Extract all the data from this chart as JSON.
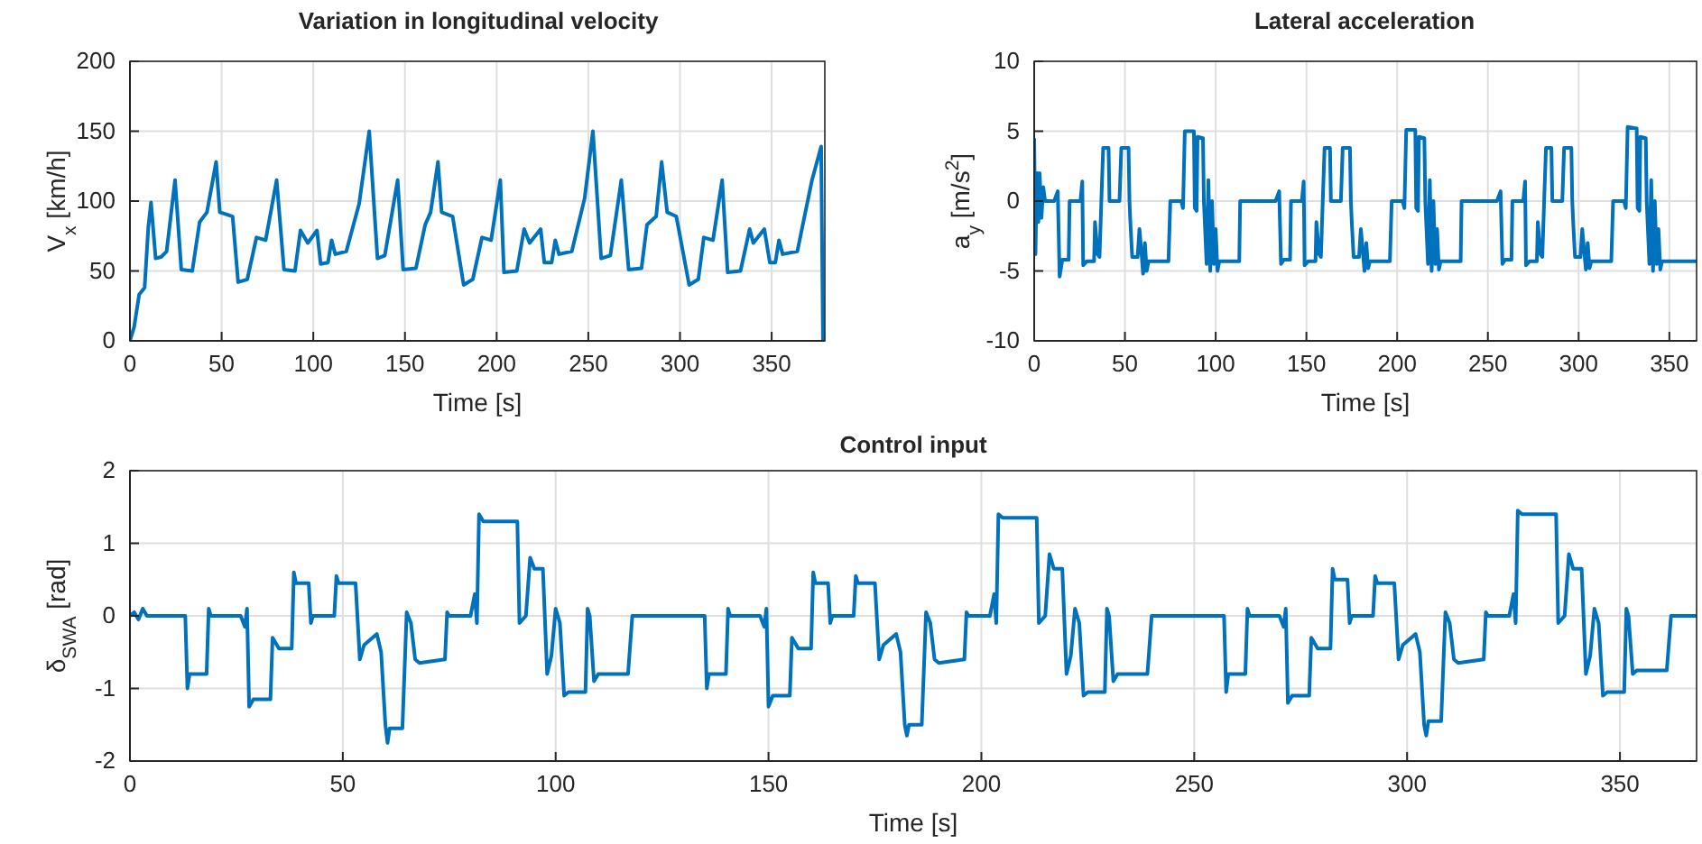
{
  "chart_data": [
    {
      "type": "line",
      "title": "Variation in longitudinal velocity",
      "xlabel": "Time [s]",
      "ylabel": "V$_{x}$ [km/h]",
      "xlim": [
        0,
        379
      ],
      "ylim": [
        0,
        200
      ],
      "xticks": [
        0,
        50,
        100,
        150,
        200,
        250,
        300,
        350
      ],
      "yticks": [
        0,
        50,
        100,
        150,
        200
      ],
      "grid": true,
      "series": [
        {
          "color": "#0072bd",
          "x": [
            0,
            2.3,
            5,
            8,
            10,
            11.5,
            14,
            17,
            20,
            24.6,
            28,
            34,
            38,
            42,
            47,
            49,
            56,
            59,
            64,
            69,
            74,
            80,
            84,
            90,
            93,
            97,
            102,
            104,
            108,
            110,
            112,
            118,
            125,
            130.5,
            135,
            139,
            146,
            149,
            156,
            161,
            164,
            168,
            170,
            176,
            182,
            187,
            192,
            197,
            202,
            204,
            211,
            215,
            218,
            224,
            226,
            230,
            232,
            234,
            241,
            248,
            252.5,
            257,
            262,
            268,
            272,
            279,
            282,
            287,
            290,
            293,
            298,
            305,
            310,
            313,
            318,
            323,
            326,
            333,
            338,
            340,
            346,
            349,
            352,
            354,
            356,
            364,
            372,
            377,
            378
          ],
          "values": [
            0,
            10,
            33,
            38,
            81,
            99,
            59,
            60,
            64,
            115,
            51,
            50,
            85,
            92,
            128,
            92,
            89,
            42,
            44,
            74,
            72,
            115,
            51,
            50,
            79,
            70,
            79,
            55,
            56,
            72,
            62,
            64,
            98,
            150,
            59,
            61,
            115,
            51,
            52,
            83,
            92,
            128,
            92,
            89,
            40,
            44,
            74,
            72,
            115,
            49,
            50,
            80,
            70,
            80,
            56,
            56,
            72,
            62,
            64,
            102,
            150,
            59,
            61,
            115,
            51,
            52,
            83,
            89,
            128,
            92,
            89,
            40,
            44,
            74,
            72,
            115,
            49,
            50,
            80,
            70,
            80,
            56,
            56,
            72,
            62,
            64,
            115,
            139,
            0
          ]
        }
      ]
    },
    {
      "type": "line",
      "title": "Lateral acceleration",
      "xlabel": "Time [s]",
      "ylabel": "a$_{y}$ [m/s$^{2}$]",
      "xlim": [
        0,
        365
      ],
      "ylim": [
        -10,
        10
      ],
      "xticks": [
        0,
        50,
        100,
        150,
        200,
        250,
        300,
        350
      ],
      "yticks": [
        -10,
        -5,
        0,
        5,
        10
      ],
      "grid": true,
      "series": [
        {
          "color": "#0072bd",
          "x": [
            0,
            0.7,
            1.5,
            2.3,
            3,
            4,
            5,
            6,
            11,
            13,
            14,
            15.5,
            19,
            19.5,
            25.5,
            26.5,
            27,
            29,
            33,
            33.5,
            35,
            36,
            37,
            38,
            41,
            41.5,
            47,
            48,
            52,
            52.5,
            53,
            54,
            57,
            58,
            59,
            60,
            61,
            62,
            63,
            74,
            75,
            81,
            82,
            83,
            88,
            88.5,
            89.5,
            90,
            93,
            93.5,
            95,
            96,
            97,
            98,
            99,
            100,
            101,
            102,
            113,
            113.5,
            133,
            135,
            136,
            137.5,
            141,
            141.5,
            147.5,
            148.5,
            149,
            151,
            155,
            155.5,
            157,
            158,
            159,
            160,
            163,
            163.5,
            169,
            170,
            174,
            174.5,
            175,
            176,
            179,
            180,
            181,
            182,
            183,
            184,
            185,
            196,
            197,
            203,
            204,
            205,
            210,
            210.5,
            211.5,
            212,
            215,
            215.5,
            217,
            218,
            219,
            220,
            221,
            222,
            223,
            224,
            235,
            235.5,
            255,
            257,
            258,
            259.5,
            263,
            263.5,
            269.5,
            270.5,
            271,
            273,
            277,
            277.5,
            279,
            280,
            281,
            282,
            285,
            285.5,
            291,
            292,
            296,
            296.5,
            297,
            298,
            301,
            302,
            303,
            304,
            305,
            306,
            307,
            318,
            319,
            325,
            326,
            327,
            332,
            332.5,
            333.5,
            334,
            337,
            337.5,
            339,
            340,
            341,
            342,
            343,
            344,
            345,
            346,
            365
          ],
          "values": [
            4.5,
            -3.8,
            2,
            -1.5,
            2,
            -1.2,
            1,
            0,
            0,
            0.7,
            -5.4,
            -4.2,
            -4.2,
            0,
            0,
            1.4,
            -4.6,
            -4.3,
            -4.3,
            -1.5,
            -3.8,
            -4,
            0,
            3.8,
            3.8,
            0,
            0,
            3.8,
            3.8,
            0,
            -1.5,
            -4,
            -4,
            -2,
            -3.5,
            -5.2,
            -3,
            -5,
            -4.3,
            -4.3,
            0,
            0,
            -0.5,
            5,
            5,
            -0.5,
            -0.7,
            4.6,
            4.5,
            0,
            -4.5,
            1.5,
            -5,
            0,
            -4.5,
            -2,
            -5,
            -4.3,
            -4.3,
            0,
            0,
            0.7,
            -4.5,
            -4.2,
            -4.2,
            0,
            0,
            1.4,
            -4.6,
            -4.3,
            -4.3,
            -1.5,
            -3.8,
            -4,
            0,
            3.8,
            3.8,
            0,
            0,
            3.8,
            3.8,
            0,
            -1.5,
            -4,
            -4,
            -2,
            -3.5,
            -5,
            -3,
            -4.8,
            -4.3,
            -4.3,
            0,
            0,
            -0.5,
            5.1,
            5.1,
            -0.5,
            -0.7,
            4.6,
            4.5,
            0,
            -4.5,
            1.5,
            -5,
            0,
            -4.5,
            -2,
            -4.9,
            -4.3,
            -4.3,
            0,
            0,
            0.7,
            -4.5,
            -4.2,
            -4.2,
            0,
            0,
            1.4,
            -4.6,
            -4.3,
            -4.3,
            -1.5,
            -3.8,
            -4,
            0,
            3.8,
            3.8,
            0,
            0,
            3.8,
            3.8,
            0,
            -1.5,
            -4,
            -4,
            -2,
            -3.5,
            -4.9,
            -3,
            -4.8,
            -4.3,
            -4.3,
            0,
            0,
            -0.5,
            5.3,
            5.2,
            -0.5,
            -0.7,
            4.6,
            4.5,
            0,
            -4.5,
            1.5,
            -5,
            0,
            -4.5,
            -2,
            -4.9,
            -4.3,
            -4.3
          ]
        }
      ]
    },
    {
      "type": "line",
      "title": "Control input",
      "xlabel": "Time [s]",
      "ylabel": "δ$_{SWA}$ [rad]",
      "xlim": [
        0,
        368
      ],
      "ylim": [
        -2,
        2
      ],
      "xticks": [
        0,
        50,
        100,
        150,
        200,
        250,
        300,
        350
      ],
      "yticks": [
        -2,
        -1,
        0,
        1,
        2
      ],
      "grid": true,
      "series": [
        {
          "color": "#0072bd",
          "x": [
            0,
            1,
            2,
            3,
            4,
            13,
            13.5,
            14,
            18,
            18.5,
            19,
            26,
            27,
            27.5,
            28,
            29,
            33,
            33.5,
            35,
            38,
            38.5,
            39,
            42,
            42.5,
            43,
            48,
            48.5,
            49,
            53,
            54,
            55,
            58,
            59,
            60,
            60.5,
            61,
            64,
            65,
            66,
            67,
            68,
            74,
            74.5,
            75,
            80,
            81,
            81.5,
            82,
            83,
            91,
            91.5,
            93,
            94,
            95,
            97,
            98,
            99,
            100,
            101,
            102,
            103,
            107,
            107.5,
            108,
            109,
            110,
            117,
            118,
            135,
            135.5,
            136,
            140,
            140.5,
            141,
            148,
            149,
            149.5,
            150,
            151,
            155,
            155.5,
            157,
            160,
            160.5,
            161,
            164,
            164.5,
            165,
            170,
            170.5,
            171,
            175,
            176,
            177,
            180,
            181,
            182,
            182.5,
            183,
            186,
            187,
            188,
            189,
            190,
            196,
            196.5,
            197,
            202,
            203,
            203.5,
            204,
            205,
            213,
            213.5,
            215,
            216,
            217,
            219,
            220,
            221,
            222,
            223,
            224,
            225,
            229,
            229.5,
            230,
            231,
            232,
            239,
            240,
            257,
            257.5,
            258,
            262,
            262.5,
            263,
            270,
            271,
            271.5,
            272,
            273,
            277,
            277.5,
            279,
            282,
            282.5,
            283,
            286,
            286.5,
            287,
            292,
            292.5,
            293,
            297,
            298,
            299,
            302,
            303,
            304,
            304.5,
            305,
            308,
            309,
            310,
            311,
            312,
            318,
            318.5,
            319,
            324,
            325,
            325.5,
            326,
            327,
            335,
            335.5,
            337,
            338,
            339,
            341,
            342,
            343,
            344,
            345,
            346,
            347,
            351,
            351.5,
            352,
            353,
            354,
            361,
            362,
            368
          ],
          "values": [
            0,
            0.05,
            -0.05,
            0.1,
            0,
            0,
            -1,
            -0.8,
            -0.8,
            0.1,
            0,
            0,
            -0.15,
            0.1,
            -1.25,
            -1.15,
            -1.15,
            -0.3,
            -0.45,
            -0.45,
            0.6,
            0.45,
            0.45,
            -0.1,
            0,
            0,
            0.55,
            0.45,
            0.45,
            -0.6,
            -0.4,
            -0.25,
            -0.5,
            -1.5,
            -1.75,
            -1.55,
            -1.55,
            0.05,
            -0.1,
            -0.6,
            -0.65,
            -0.6,
            0.05,
            0,
            0,
            0.3,
            -0.1,
            1.4,
            1.3,
            1.3,
            -0.1,
            0,
            0.8,
            0.65,
            0.65,
            -0.8,
            -0.55,
            0.1,
            -0.1,
            -1.1,
            -1.05,
            -1.05,
            0.1,
            0,
            -0.9,
            -0.8,
            -0.8,
            0,
            0,
            -1,
            -0.8,
            -0.8,
            0.1,
            0,
            0,
            -0.15,
            0.1,
            -1.25,
            -1.1,
            -1.1,
            -0.3,
            -0.45,
            -0.45,
            0.6,
            0.45,
            0.45,
            -0.1,
            0,
            0,
            0.55,
            0.45,
            0.45,
            -0.6,
            -0.4,
            -0.25,
            -0.5,
            -1.5,
            -1.65,
            -1.5,
            -1.5,
            0.05,
            -0.1,
            -0.6,
            -0.65,
            -0.6,
            0.05,
            0,
            0,
            0.3,
            -0.1,
            1.4,
            1.35,
            1.35,
            -0.1,
            0,
            0.85,
            0.65,
            0.65,
            -0.8,
            -0.55,
            0.1,
            -0.1,
            -1.1,
            -1.05,
            -1.05,
            0.1,
            0,
            -0.9,
            -0.8,
            -0.8,
            0,
            0,
            -1.05,
            -0.8,
            -0.8,
            0.1,
            0,
            0,
            -0.15,
            0.1,
            -1.2,
            -1.1,
            -1.1,
            -0.3,
            -0.45,
            -0.45,
            0.65,
            0.5,
            0.5,
            -0.1,
            0,
            0,
            0.55,
            0.45,
            0.45,
            -0.6,
            -0.4,
            -0.25,
            -0.5,
            -1.5,
            -1.65,
            -1.45,
            -1.45,
            0.05,
            -0.1,
            -0.6,
            -0.65,
            -0.6,
            0.05,
            0,
            0,
            0.3,
            -0.1,
            1.45,
            1.4,
            1.4,
            -0.1,
            0,
            0.85,
            0.65,
            0.65,
            -0.8,
            -0.55,
            0.1,
            -0.1,
            -1.1,
            -1.05,
            -1.05,
            0.1,
            0,
            -0.8,
            -0.75,
            -0.75,
            0,
            0
          ]
        }
      ]
    }
  ]
}
